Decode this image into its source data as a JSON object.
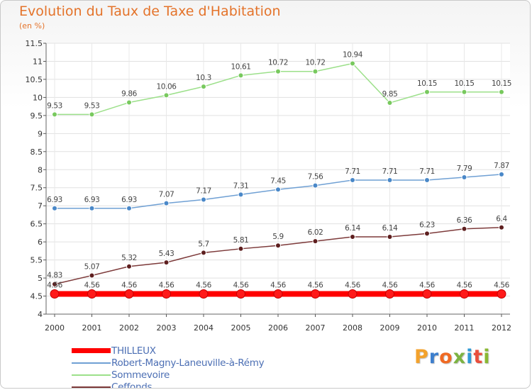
{
  "title": "Evolution du Taux de Taxe d'Habitation",
  "subtitle": "(en %)",
  "logo": {
    "letters": [
      "P",
      "r",
      "o",
      "x",
      "i",
      "t",
      "i"
    ],
    "colors": [
      "#f3a22c",
      "#3d7fcd",
      "#f06a23",
      "#7cb342",
      "#2f9ad6",
      "#e94e3c",
      "#8ab833"
    ]
  },
  "chart_data": {
    "type": "line",
    "x": [
      2000,
      2001,
      2002,
      2003,
      2004,
      2005,
      2006,
      2007,
      2008,
      2009,
      2010,
      2011,
      2012
    ],
    "ylim": [
      4,
      11.5
    ],
    "yticks": [
      "4",
      "4.5",
      "5",
      "5.5",
      "6",
      "6.5",
      "7",
      "7.5",
      "8",
      "8.5",
      "9",
      "9.5",
      "10",
      "10.5",
      "11",
      "11.5"
    ],
    "ytick_values": [
      4,
      4.5,
      5,
      5.5,
      6,
      6.5,
      7,
      7.5,
      8,
      8.5,
      9,
      9.5,
      10,
      10.5,
      11,
      11.5
    ],
    "grid": true,
    "legend_position": "bottom-left",
    "series": [
      {
        "name": "THILLEUX",
        "color": "#ff0000",
        "marker": "#e82020",
        "values": [
          4.56,
          4.56,
          4.56,
          4.56,
          4.56,
          4.56,
          4.56,
          4.56,
          4.56,
          4.56,
          4.56,
          4.56,
          4.56
        ],
        "labels": [
          "4.56",
          "4.56",
          "4.56",
          "4.56",
          "4.56",
          "4.56",
          "4.56",
          "4.56",
          "4.56",
          "4.56",
          "4.56",
          "4.56",
          "4.56"
        ]
      },
      {
        "name": "Robert-Magny-Laneuville-à-Rémy",
        "color": "#6fa0d4",
        "marker": "#4a88c8",
        "values": [
          6.93,
          6.93,
          6.93,
          7.07,
          7.17,
          7.31,
          7.45,
          7.56,
          7.71,
          7.71,
          7.71,
          7.79,
          7.87
        ],
        "labels": [
          "6.93",
          "6.93",
          "6.93",
          "7.07",
          "7.17",
          "7.31",
          "7.45",
          "7.56",
          "7.71",
          "7.71",
          "7.71",
          "7.79",
          "7.87"
        ]
      },
      {
        "name": "Sommevoire",
        "color": "#9ce08a",
        "marker": "#78c95e",
        "values": [
          9.53,
          9.53,
          9.86,
          10.06,
          10.3,
          10.61,
          10.72,
          10.72,
          10.94,
          9.85,
          10.15,
          10.15,
          10.15
        ],
        "labels": [
          "9.53",
          "9.53",
          "9.86",
          "10.06",
          "10.3",
          "10.61",
          "10.72",
          "10.72",
          "10.94",
          "9.85",
          "10.15",
          "10.15",
          "10.15"
        ]
      },
      {
        "name": "Ceffonds",
        "color": "#7d3a3a",
        "marker": "#5e1f1f",
        "values": [
          4.83,
          5.07,
          5.32,
          5.43,
          5.7,
          5.81,
          5.9,
          6.02,
          6.14,
          6.14,
          6.23,
          6.36,
          6.4
        ],
        "labels": [
          "4.83",
          "5.07",
          "5.32",
          "5.43",
          "5.7",
          "5.81",
          "5.9",
          "6.02",
          "6.14",
          "6.14",
          "6.23",
          "6.36",
          "6.4"
        ]
      }
    ]
  }
}
